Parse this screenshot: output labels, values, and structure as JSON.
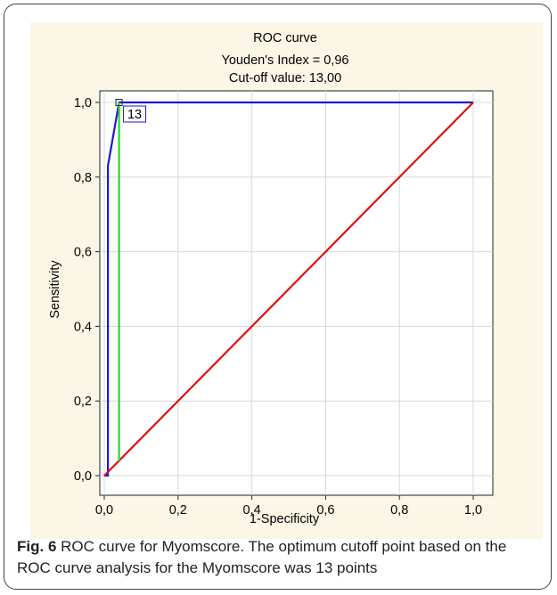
{
  "chart_data": {
    "type": "line",
    "title": "ROC curve",
    "subtitle_lines": [
      "Youden's Index  = 0,96",
      "Cut-off value: 13,00"
    ],
    "xlabel": "1-Specificity",
    "ylabel": "Sensitivity",
    "xlim": [
      0,
      1
    ],
    "ylim": [
      0,
      1
    ],
    "x_ticks": [
      "0,0",
      "0,2",
      "0,4",
      "0,6",
      "0,8",
      "1,0"
    ],
    "y_ticks": [
      "0,0",
      "0,2",
      "0,4",
      "0,6",
      "0,8",
      "1,0"
    ],
    "grid": true,
    "series": [
      {
        "color": "#1a1adb",
        "x": [
          0,
          0.01,
          0.01,
          0.04,
          1.0
        ],
        "y": [
          0,
          0,
          0.83,
          1.0,
          1.0
        ]
      },
      {
        "color": "#e01010",
        "x": [
          0,
          1
        ],
        "y": [
          0,
          1
        ]
      },
      {
        "color": "#22dd22",
        "x": [
          0.04,
          0.04
        ],
        "y": [
          0.04,
          1.0
        ]
      }
    ],
    "cutoff_point": {
      "x": 0.04,
      "y": 1.0,
      "label": "13"
    }
  },
  "caption": {
    "label": "Fig. 6",
    "text": " ROC curve for Myomscore. The optimum cutoff point based on the ROC curve analysis for the Myomscore was 13 points"
  }
}
